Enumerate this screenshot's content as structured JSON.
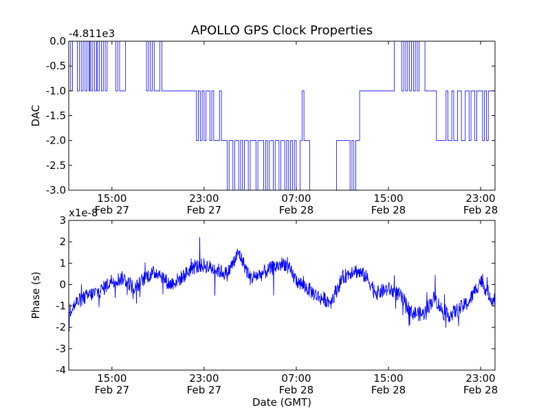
{
  "chart_data": [
    {
      "type": "line",
      "title": "APOLLO GPS Clock Properties",
      "ylabel": "DAC",
      "xlabel": "",
      "offset_label": "-4.811e3",
      "xlim": [
        "2/27 11:15",
        "2/29 00:15"
      ],
      "ylim": [
        -3.0,
        0.0
      ],
      "yticks": [
        "0.0",
        "-0.5",
        "-1.0",
        "-1.5",
        "-2.0",
        "-2.5",
        "-3.0"
      ],
      "xticks": [
        {
          "at": "2/27 15:00",
          "time": "15:00",
          "date": "Feb 27"
        },
        {
          "at": "2/27 23:00",
          "time": "23:00",
          "date": "Feb 27"
        },
        {
          "at": "2/28 07:00",
          "time": "07:00",
          "date": "Feb 28"
        },
        {
          "at": "2/28 15:00",
          "time": "15:00",
          "date": "Feb 28"
        },
        {
          "at": "2/28 23:00",
          "time": "23:00",
          "date": "Feb 28"
        }
      ],
      "color": "#0000ff",
      "series": [
        {
          "x": [
            "2/27 11:15",
            "2/27 11:25",
            "2/27 11:35",
            "2/27 12:00",
            "2/27 12:10",
            "2/27 12:20",
            "2/27 12:30",
            "2/27 12:40",
            "2/27 12:50",
            "2/27 13:00",
            "2/27 13:05",
            "2/27 13:10",
            "2/27 13:20",
            "2/27 13:30",
            "2/27 13:40",
            "2/27 13:45",
            "2/27 13:55",
            "2/27 14:05",
            "2/27 14:15",
            "2/27 14:25",
            "2/27 14:35",
            "2/27 15:20",
            "2/27 15:30",
            "2/27 15:40",
            "2/27 16:10",
            "2/27 18:00",
            "2/27 18:10",
            "2/27 18:20",
            "2/27 18:30",
            "2/27 18:40",
            "2/27 19:10",
            "2/27 19:20",
            "2/27 19:30",
            "2/27 20:30",
            "2/27 21:00",
            "2/27 21:40",
            "2/27 22:20",
            "2/27 22:30",
            "2/27 22:40",
            "2/27 22:50",
            "2/27 23:00",
            "2/27 23:10",
            "2/27 23:30",
            "2/27 23:40",
            "2/27 23:50",
            "2/28 00:20",
            "2/28 00:30",
            "2/28 01:00",
            "2/28 01:10",
            "2/28 01:30",
            "2/28 01:40",
            "2/28 02:00",
            "2/28 02:10",
            "2/28 02:20",
            "2/28 02:30",
            "2/28 02:50",
            "2/28 03:00",
            "2/28 03:30",
            "2/28 03:40",
            "2/28 04:10",
            "2/28 04:20",
            "2/28 04:30",
            "2/28 04:40",
            "2/28 05:00",
            "2/28 05:10",
            "2/28 05:30",
            "2/28 05:40",
            "2/28 06:00",
            "2/28 06:10",
            "2/28 06:20",
            "2/28 06:30",
            "2/28 06:40",
            "2/28 06:50",
            "2/28 07:00",
            "2/28 07:20",
            "2/28 07:30",
            "2/28 07:40",
            "2/28 08:00",
            "2/28 08:10",
            "2/28 08:20",
            "2/28 09:00",
            "2/28 09:10",
            "2/28 10:20",
            "2/28 10:30",
            "2/28 11:40",
            "2/28 11:50",
            "2/28 12:00",
            "2/28 12:10",
            "2/28 12:30",
            "2/28 13:30",
            "2/28 13:40",
            "2/28 14:00",
            "2/28 15:00",
            "2/28 15:30",
            "2/28 16:10",
            "2/28 16:20",
            "2/28 16:30",
            "2/28 16:40",
            "2/28 16:50",
            "2/28 17:00",
            "2/28 17:10",
            "2/28 17:20",
            "2/28 17:30",
            "2/28 17:40",
            "2/28 18:10",
            "2/28 18:20",
            "2/28 19:00",
            "2/28 19:10",
            "2/28 20:00",
            "2/28 20:10",
            "2/28 20:30",
            "2/28 20:40",
            "2/28 21:00",
            "2/28 21:20",
            "2/28 21:40",
            "2/28 22:00",
            "2/28 22:10",
            "2/28 22:30",
            "2/28 22:40",
            "2/28 23:10",
            "2/28 23:20",
            "2/28 23:30",
            "2/28 23:40",
            "2/29 00:00",
            "2/29 00:15"
          ],
          "y": [
            0,
            -1,
            0,
            -1,
            0,
            -1,
            0,
            -1,
            0,
            -1,
            0,
            -1,
            0,
            -1,
            0,
            -1,
            0,
            -1,
            0,
            -1,
            0,
            -1,
            0,
            -1,
            0,
            -1,
            0,
            -1,
            0,
            -1,
            0,
            -1,
            -1,
            -1,
            -1,
            -1,
            -2,
            -1,
            -2,
            -1,
            -2,
            -1,
            -2,
            -1,
            -2,
            -1,
            -2,
            -3,
            -2,
            -3,
            -2,
            -3,
            -2,
            -3,
            -2,
            -3,
            -2,
            -3,
            -2,
            -3,
            -2,
            -3,
            -2,
            -3,
            -2,
            -3,
            -2,
            -3,
            -2,
            -3,
            -2,
            -3,
            -2,
            -3,
            -2,
            -1,
            -2,
            -2,
            -3,
            -3,
            -3,
            -3,
            -3,
            -2,
            -3,
            -2,
            -3,
            -2,
            -1,
            -1,
            -1,
            -1,
            -1,
            0,
            -1,
            0,
            -1,
            0,
            -1,
            0,
            -1,
            0,
            -1,
            0,
            -1,
            -1,
            -1,
            -2,
            -1,
            -2,
            -1,
            -2,
            -1,
            -2,
            -1,
            -2,
            -1,
            -2,
            -1,
            -2,
            -1,
            -2,
            -1,
            -1,
            -1
          ]
        }
      ]
    },
    {
      "type": "line",
      "title": "",
      "ylabel": "Phase (s)",
      "xlabel": "Date (GMT)",
      "offset_label": "x1e-8",
      "xlim": [
        "2/27 11:15",
        "2/29 00:15"
      ],
      "ylim": [
        -4,
        3
      ],
      "yticks": [
        "3",
        "2",
        "1",
        "0",
        "-1",
        "-2",
        "-3",
        "-4"
      ],
      "xticks": [
        {
          "at": "2/27 15:00",
          "time": "15:00",
          "date": "Feb 27"
        },
        {
          "at": "2/27 23:00",
          "time": "23:00",
          "date": "Feb 27"
        },
        {
          "at": "2/28 07:00",
          "time": "07:00",
          "date": "Feb 28"
        },
        {
          "at": "2/28 15:00",
          "time": "15:00",
          "date": "Feb 28"
        },
        {
          "at": "2/28 23:00",
          "time": "23:00",
          "date": "Feb 28"
        }
      ],
      "color": "#0000ff",
      "noise_amplitude": 0.35,
      "series": [
        {
          "x": [
            "2/27 11:15",
            "2/27 12:00",
            "2/27 13:00",
            "2/27 14:00",
            "2/27 15:00",
            "2/27 16:00",
            "2/27 17:00",
            "2/27 18:00",
            "2/27 19:00",
            "2/27 20:00",
            "2/27 21:00",
            "2/27 22:00",
            "2/27 23:00",
            "2/28 00:00",
            "2/28 01:00",
            "2/28 02:00",
            "2/28 03:00",
            "2/28 04:00",
            "2/28 05:00",
            "2/28 06:00",
            "2/28 07:00",
            "2/28 08:00",
            "2/28 09:00",
            "2/28 10:00",
            "2/28 11:00",
            "2/28 12:00",
            "2/28 13:00",
            "2/28 14:00",
            "2/28 15:00",
            "2/28 16:00",
            "2/28 17:00",
            "2/28 18:00",
            "2/28 19:00",
            "2/28 20:00",
            "2/28 21:00",
            "2/28 22:00",
            "2/28 23:00",
            "2/29 00:00",
            "2/29 00:15"
          ],
          "y": [
            -1.3,
            -0.8,
            -0.5,
            -0.3,
            0.2,
            0.3,
            -0.2,
            0.4,
            0.6,
            0.0,
            0.3,
            0.8,
            0.9,
            0.7,
            0.5,
            1.5,
            0.3,
            0.5,
            0.8,
            1.0,
            0.2,
            -0.2,
            -0.6,
            -0.8,
            0.3,
            0.7,
            0.4,
            -0.4,
            -0.2,
            -0.5,
            -1.3,
            -1.4,
            -0.6,
            -1.5,
            -1.2,
            -0.8,
            0.2,
            -0.7,
            -0.6
          ]
        }
      ]
    }
  ]
}
